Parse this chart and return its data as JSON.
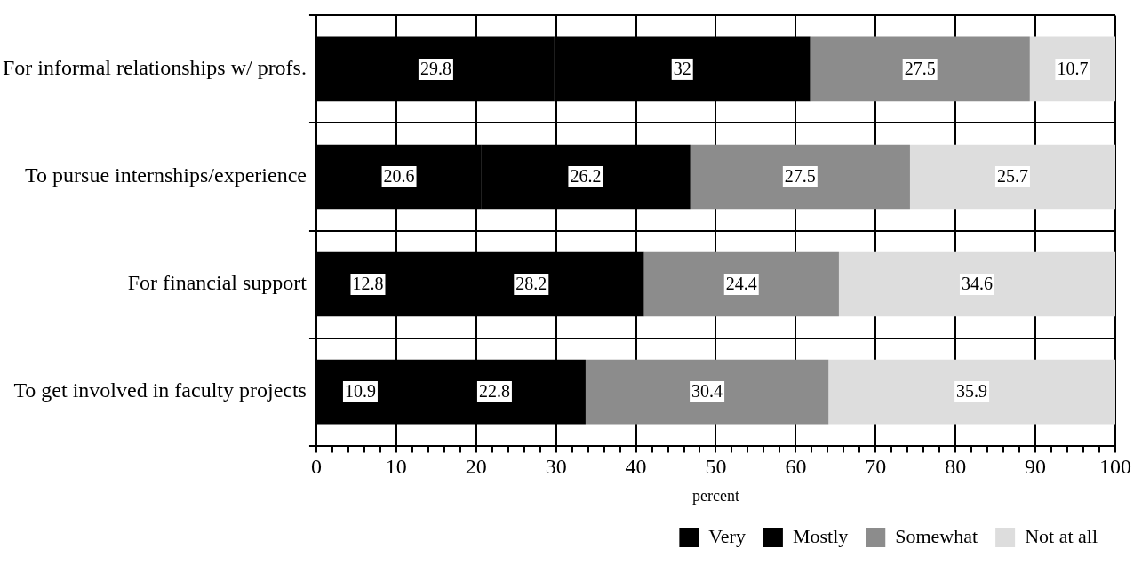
{
  "chart_data": {
    "type": "bar",
    "orientation": "horizontal",
    "stacked": true,
    "xlabel": "percent",
    "categories": [
      "For informal relationships w/ profs.",
      "To pursue internships/experience",
      "For financial support",
      "To get involved in faculty projects"
    ],
    "series": [
      {
        "name": "Very",
        "color": "#000000",
        "values": [
          29.8,
          20.6,
          12.8,
          10.9
        ]
      },
      {
        "name": "Mostly",
        "color": "#000000",
        "values": [
          32,
          26.2,
          28.2,
          22.8
        ]
      },
      {
        "name": "Somewhat",
        "color": "#8c8c8c",
        "values": [
          27.5,
          27.5,
          24.4,
          30.4
        ]
      },
      {
        "name": "Not at all",
        "color": "#dddddd",
        "values": [
          10.7,
          25.7,
          34.6,
          35.9
        ]
      }
    ],
    "xlim": [
      0,
      100
    ],
    "xticks": [
      0,
      {
        "value": 2,
        "label": null
      },
      {
        "value": 4,
        "label": null
      },
      {
        "value": 6,
        "label": null
      },
      {
        "value": 8,
        "label": null
      },
      10,
      {
        "value": 12,
        "label": null
      },
      {
        "value": 14,
        "label": null
      },
      {
        "value": 16,
        "label": null
      },
      {
        "value": 18,
        "label": null
      },
      20,
      {
        "value": 22,
        "label": null
      },
      {
        "value": 24,
        "label": null
      },
      {
        "value": 26,
        "label": null
      },
      {
        "value": 28,
        "label": null
      },
      30,
      {
        "value": 32,
        "label": null
      },
      {
        "value": 34,
        "label": null
      },
      {
        "value": 36,
        "label": null
      },
      {
        "value": 38,
        "label": null
      },
      40,
      {
        "value": 42,
        "label": null
      },
      {
        "value": 44,
        "label": null
      },
      {
        "value": 46,
        "label": null
      },
      {
        "value": 48,
        "label": null
      },
      50,
      {
        "value": 52,
        "label": null
      },
      {
        "value": 54,
        "label": null
      },
      {
        "value": 56,
        "label": null
      },
      {
        "value": 58,
        "label": null
      },
      60,
      {
        "value": 62,
        "label": null
      },
      {
        "value": 64,
        "label": null
      },
      {
        "value": 66,
        "label": null
      },
      {
        "value": 68,
        "label": null
      },
      70,
      {
        "value": 72,
        "label": null
      },
      {
        "value": 74,
        "label": null
      },
      {
        "value": 76,
        "label": null
      },
      {
        "value": 78,
        "label": null
      },
      80,
      {
        "value": 82,
        "label": null
      },
      {
        "value": 84,
        "label": null
      },
      {
        "value": 86,
        "label": null
      },
      {
        "value": 88,
        "label": null
      },
      90,
      {
        "value": 92,
        "label": null
      },
      {
        "value": 94,
        "label": null
      },
      {
        "value": 96,
        "label": null
      },
      {
        "value": 98,
        "label": null
      },
      100
    ],
    "grid": true,
    "legend": "bottom",
    "data_labels": true
  }
}
